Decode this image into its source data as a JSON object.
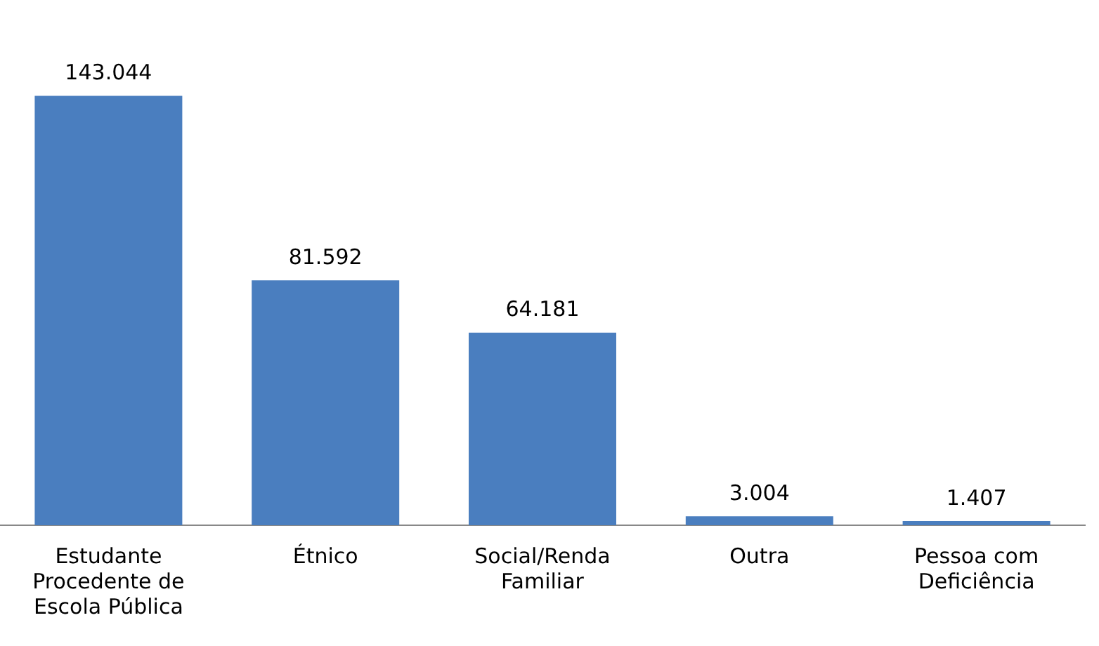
{
  "chart_data": {
    "type": "bar",
    "categories": [
      "Estudante Procedente de Escola Pública",
      "Étnico",
      "Social/Renda Familiar",
      "Outra",
      "Pessoa com Deficiência"
    ],
    "values": [
      143044,
      81592,
      64181,
      3004,
      1407
    ],
    "value_labels": [
      "143.044",
      "81.592",
      "64.181",
      "3.004",
      "1.407"
    ],
    "color": "#4a7ebf",
    "grid": false,
    "legend": false
  }
}
